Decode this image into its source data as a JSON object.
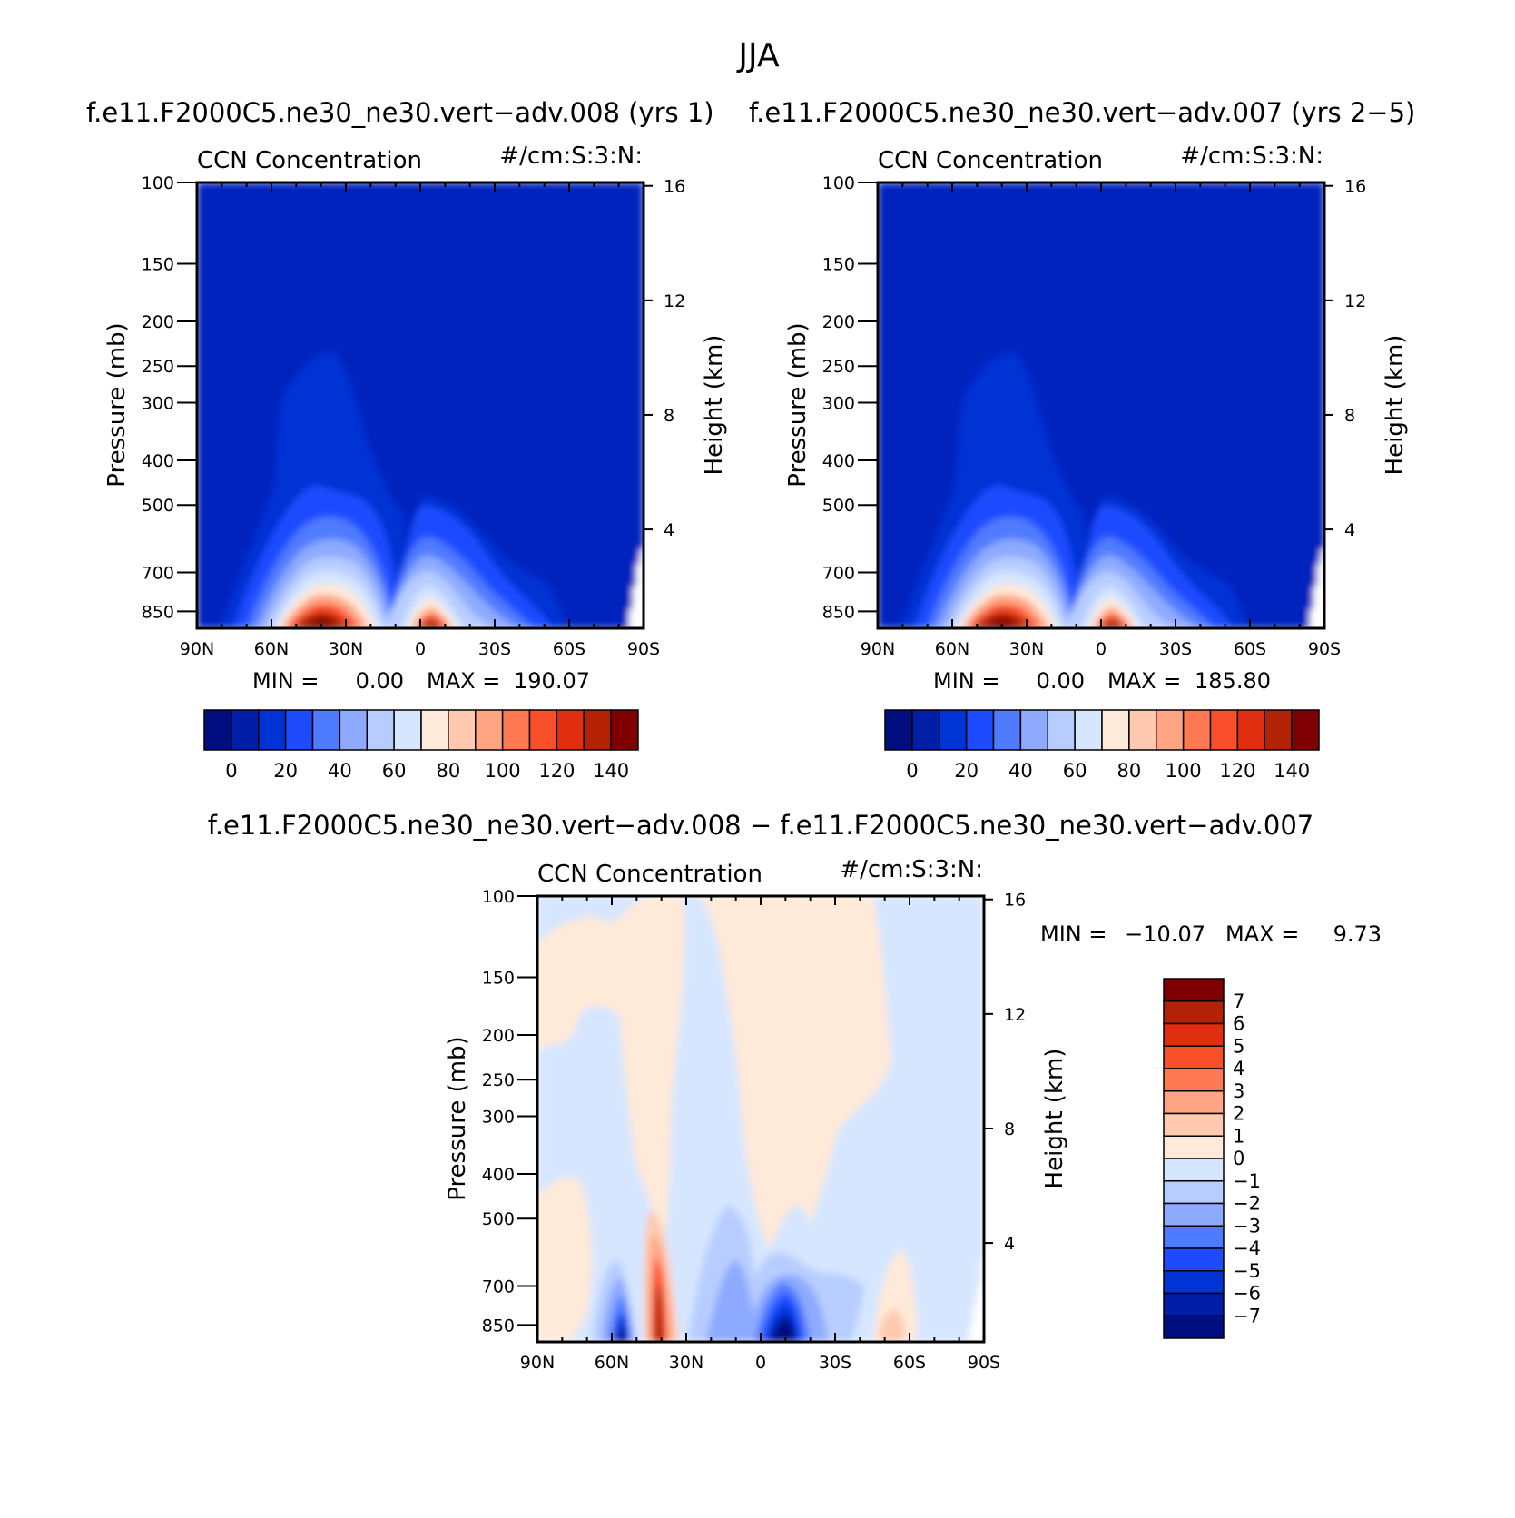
{
  "figure": {
    "super_title": "JJA"
  },
  "panel_left": {
    "title": "f.e11.F2000C5.ne30_ne30.vert−adv.008 (yrs 1)",
    "left_string": "CCN Concentration",
    "right_string": "#/cm:S:3:N:",
    "ylabel": "Pressure (mb)",
    "ylabel_right": "Height (km)",
    "min_label": "MIN =",
    "min_value": "0.00",
    "max_label": "MAX =",
    "max_value": "190.07"
  },
  "panel_right": {
    "title": "f.e11.F2000C5.ne30_ne30.vert−adv.007 (yrs 2−5)",
    "left_string": "CCN Concentration",
    "right_string": "#/cm:S:3:N:",
    "ylabel": "Pressure (mb)",
    "ylabel_right": "Height (km)",
    "min_label": "MIN =",
    "min_value": "0.00",
    "max_label": "MAX =",
    "max_value": "185.80"
  },
  "panel_diff": {
    "title": "f.e11.F2000C5.ne30_ne30.vert−adv.008 − f.e11.F2000C5.ne30_ne30.vert−adv.007",
    "left_string": "CCN Concentration",
    "right_string": "#/cm:S:3:N:",
    "ylabel": "Pressure (mb)",
    "ylabel_right": "Height (km)",
    "min_label": "MIN =",
    "min_value": "−10.07",
    "max_label": "MAX =",
    "max_value": "9.73"
  },
  "colors": {
    "scale": [
      "#000e7f",
      "#001ea6",
      "#0033d4",
      "#1f4bff",
      "#4f7bff",
      "#8eaaff",
      "#b8cdff",
      "#d6e6ff",
      "#ffe9d8",
      "#ffc9b0",
      "#ffa583",
      "#ff7a52",
      "#f94f2a",
      "#df2e10",
      "#b42205",
      "#7f0000"
    ],
    "ccn_base": "#0021bd"
  },
  "chart_data": [
    {
      "type": "heatmap",
      "title": "f.e11.F2000C5.ne30_ne30.vert−adv.008 (yrs 1)",
      "subtitle_left": "CCN Concentration",
      "subtitle_right": "#/cm:S:3:N:",
      "xlabel": "",
      "ylabel": "Pressure (mb)",
      "ylabel_right": "Height (km)",
      "x_ticks": [
        "90N",
        "60N",
        "30N",
        "0",
        "30S",
        "60S",
        "90S"
      ],
      "x_range": [
        90,
        -90
      ],
      "y_ticks": [
        100,
        150,
        200,
        250,
        300,
        400,
        500,
        700,
        850
      ],
      "y_range": [
        100,
        925
      ],
      "y_scale": "log",
      "y_right_ticks": [
        16,
        12,
        8,
        4
      ],
      "colorbar_levels": [
        0,
        10,
        20,
        30,
        40,
        50,
        60,
        70,
        80,
        90,
        100,
        110,
        120,
        130,
        140
      ],
      "colorbar_labels": [
        "0",
        "20",
        "40",
        "60",
        "80",
        "100",
        "120",
        "140"
      ],
      "min": 0.0,
      "max": 190.07
    },
    {
      "type": "heatmap",
      "title": "f.e11.F2000C5.ne30_ne30.vert−adv.007 (yrs 2−5)",
      "subtitle_left": "CCN Concentration",
      "subtitle_right": "#/cm:S:3:N:",
      "xlabel": "",
      "ylabel": "Pressure (mb)",
      "ylabel_right": "Height (km)",
      "x_ticks": [
        "90N",
        "60N",
        "30N",
        "0",
        "30S",
        "60S",
        "90S"
      ],
      "x_range": [
        90,
        -90
      ],
      "y_ticks": [
        100,
        150,
        200,
        250,
        300,
        400,
        500,
        700,
        850
      ],
      "y_range": [
        100,
        925
      ],
      "y_scale": "log",
      "y_right_ticks": [
        16,
        12,
        8,
        4
      ],
      "colorbar_levels": [
        0,
        10,
        20,
        30,
        40,
        50,
        60,
        70,
        80,
        90,
        100,
        110,
        120,
        130,
        140
      ],
      "colorbar_labels": [
        "0",
        "20",
        "40",
        "60",
        "80",
        "100",
        "120",
        "140"
      ],
      "min": 0.0,
      "max": 185.8
    },
    {
      "type": "heatmap",
      "title": "f.e11.F2000C5.ne30_ne30.vert−adv.008 − f.e11.F2000C5.ne30_ne30.vert−adv.007",
      "subtitle_left": "CCN Concentration",
      "subtitle_right": "#/cm:S:3:N:",
      "xlabel": "",
      "ylabel": "Pressure (mb)",
      "ylabel_right": "Height (km)",
      "x_ticks": [
        "90N",
        "60N",
        "30N",
        "0",
        "30S",
        "60S",
        "90S"
      ],
      "x_range": [
        90,
        -90
      ],
      "y_ticks": [
        100,
        150,
        200,
        250,
        300,
        400,
        500,
        700,
        850
      ],
      "y_range": [
        100,
        925
      ],
      "y_scale": "log",
      "y_right_ticks": [
        16,
        12,
        8,
        4
      ],
      "colorbar_levels": [
        7,
        6,
        5,
        4,
        3,
        2,
        1,
        0,
        -1,
        -2,
        -3,
        -4,
        -5,
        -6,
        -7
      ],
      "colorbar_labels": [
        "7",
        "6",
        "5",
        "4",
        "3",
        "2",
        "1",
        "0",
        "−1",
        "−2",
        "−3",
        "−4",
        "−5",
        "−6",
        "−7"
      ],
      "colorbar_orientation": "vertical",
      "min": -10.07,
      "max": 9.73
    }
  ]
}
